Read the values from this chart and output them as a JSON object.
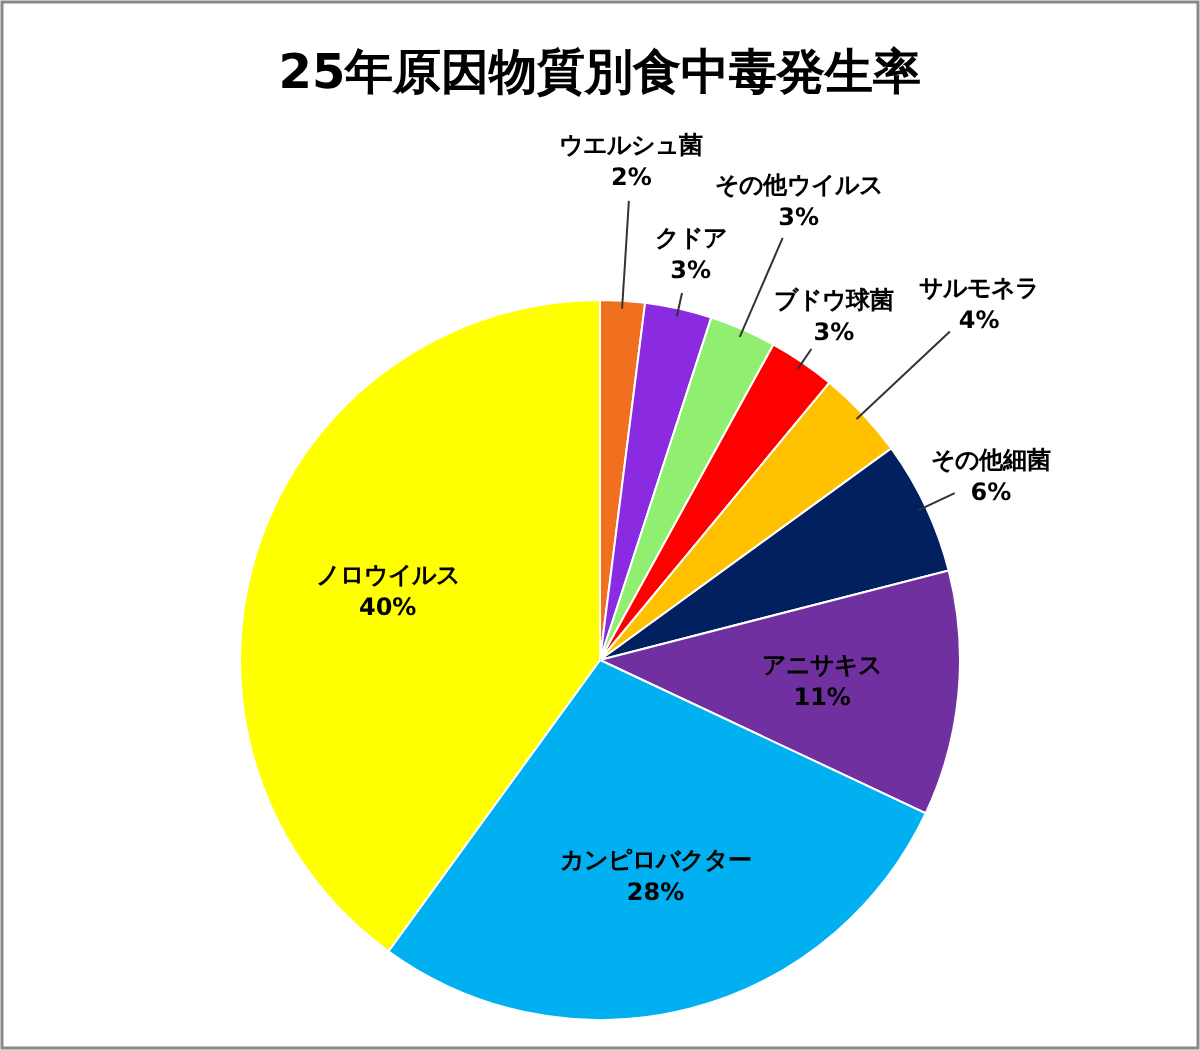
{
  "chart_data": {
    "type": "pie",
    "title": "25年原因物質別食中毒発生率",
    "categories": [
      "ウエルシュ菌",
      "クドア",
      "その他ウイルス",
      "ブドウ球菌",
      "サルモネラ",
      "その他細菌",
      "アニサキス",
      "カンピロバクター",
      "ノロウイルス"
    ],
    "values": [
      2,
      3,
      3,
      3,
      4,
      6,
      11,
      28,
      40
    ],
    "colors": [
      "#f07020",
      "#8a2be2",
      "#90ee70",
      "#ff0000",
      "#ffc000",
      "#002060",
      "#7030a0",
      "#00b0f0",
      "#ffff00"
    ],
    "value_labels": [
      "2%",
      "3%",
      "3%",
      "3%",
      "4%",
      "6%",
      "11%",
      "28%",
      "40%"
    ]
  }
}
